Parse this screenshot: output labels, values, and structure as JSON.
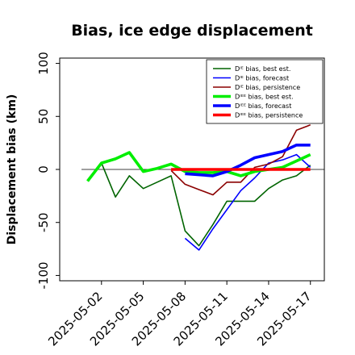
{
  "chart_data": {
    "type": "line",
    "title": "Bias, ice edge displacement",
    "xlabel": "",
    "ylabel": "Displacement bias (km)",
    "xlim": [
      "2025-04-29",
      "2025-05-18"
    ],
    "ylim": [
      -105,
      105
    ],
    "yticks": [
      100,
      50,
      0,
      -50,
      -100
    ],
    "xticks": [
      "2025-05-02",
      "2025-05-05",
      "2025-05-08",
      "2025-05-11",
      "2025-05-14",
      "2025-05-17"
    ],
    "highlighted_xtick": "2025-05-08",
    "highlight_color": "#228b22",
    "zero_line": true,
    "grid": false,
    "legend_position": "top-right",
    "series": [
      {
        "name": "Dᴵᴱ bias, best est.",
        "color": "#006400",
        "width": 1.6,
        "x": [
          "2025-05-02",
          "2025-05-03",
          "2025-05-04",
          "2025-05-05",
          "2025-05-06",
          "2025-05-07",
          "2025-05-08",
          "2025-05-09",
          "2025-05-10",
          "2025-05-11",
          "2025-05-12",
          "2025-05-13",
          "2025-05-14",
          "2025-05-15",
          "2025-05-16",
          "2025-05-17"
        ],
        "values": [
          6,
          -26,
          -6,
          -18,
          -12,
          -6,
          -58,
          -72,
          -52,
          -30,
          -30,
          -30,
          -18,
          -10,
          -6,
          4
        ]
      },
      {
        "name": "Dᴵᴱ bias, forecast",
        "color": "#0000ff",
        "width": 1.6,
        "x": [
          "2025-05-08",
          "2025-05-09",
          "2025-05-10",
          "2025-05-11",
          "2025-05-12",
          "2025-05-13",
          "2025-05-14",
          "2025-05-15",
          "2025-05-16",
          "2025-05-17"
        ],
        "values": [
          -65,
          -76,
          -56,
          -38,
          -20,
          -8,
          6,
          9,
          14,
          2
        ]
      },
      {
        "name": "Dᴵᴱ bias, persistence",
        "color": "#8b0000",
        "width": 1.6,
        "x": [
          "2025-05-07",
          "2025-05-08",
          "2025-05-09",
          "2025-05-10",
          "2025-05-11",
          "2025-05-12",
          "2025-05-13",
          "2025-05-14",
          "2025-05-15",
          "2025-05-16",
          "2025-05-17"
        ],
        "values": [
          -1,
          -14,
          -19,
          -24,
          -12,
          -12,
          2,
          5,
          12,
          37,
          42
        ]
      },
      {
        "name": "Dᴵᴱᴱ bias, best est.",
        "color": "#00ee00",
        "width": 3.6,
        "x": [
          "2025-05-01",
          "2025-05-02",
          "2025-05-03",
          "2025-05-04",
          "2025-05-05",
          "2025-05-06",
          "2025-05-07",
          "2025-05-08",
          "2025-05-09",
          "2025-05-10",
          "2025-05-11",
          "2025-05-12",
          "2025-05-13",
          "2025-05-14",
          "2025-05-15",
          "2025-05-16",
          "2025-05-17"
        ],
        "values": [
          -11,
          6,
          10,
          16,
          -2,
          1,
          5,
          -2,
          -3,
          -3,
          -2,
          -6,
          -2,
          0,
          2,
          8,
          14
        ]
      },
      {
        "name": "Dᴵᴱᴱ bias, forecast",
        "color": "#0000ff",
        "width": 3.6,
        "x": [
          "2025-05-08",
          "2025-05-09",
          "2025-05-10",
          "2025-05-11",
          "2025-05-12",
          "2025-05-13",
          "2025-05-14",
          "2025-05-15",
          "2025-05-16",
          "2025-05-17"
        ],
        "values": [
          -4,
          -5,
          -6,
          -2,
          4,
          11,
          14,
          17,
          23,
          23
        ]
      },
      {
        "name": "Dᴵᴱᴱ bias, persistence",
        "color": "#ff0000",
        "width": 3.6,
        "x": [
          "2025-05-07",
          "2025-05-08",
          "2025-05-09",
          "2025-05-10",
          "2025-05-11",
          "2025-05-12",
          "2025-05-13",
          "2025-05-14",
          "2025-05-15",
          "2025-05-16",
          "2025-05-17"
        ],
        "values": [
          0,
          0,
          0,
          0,
          0,
          0,
          0,
          0,
          0,
          0,
          0
        ]
      }
    ]
  }
}
